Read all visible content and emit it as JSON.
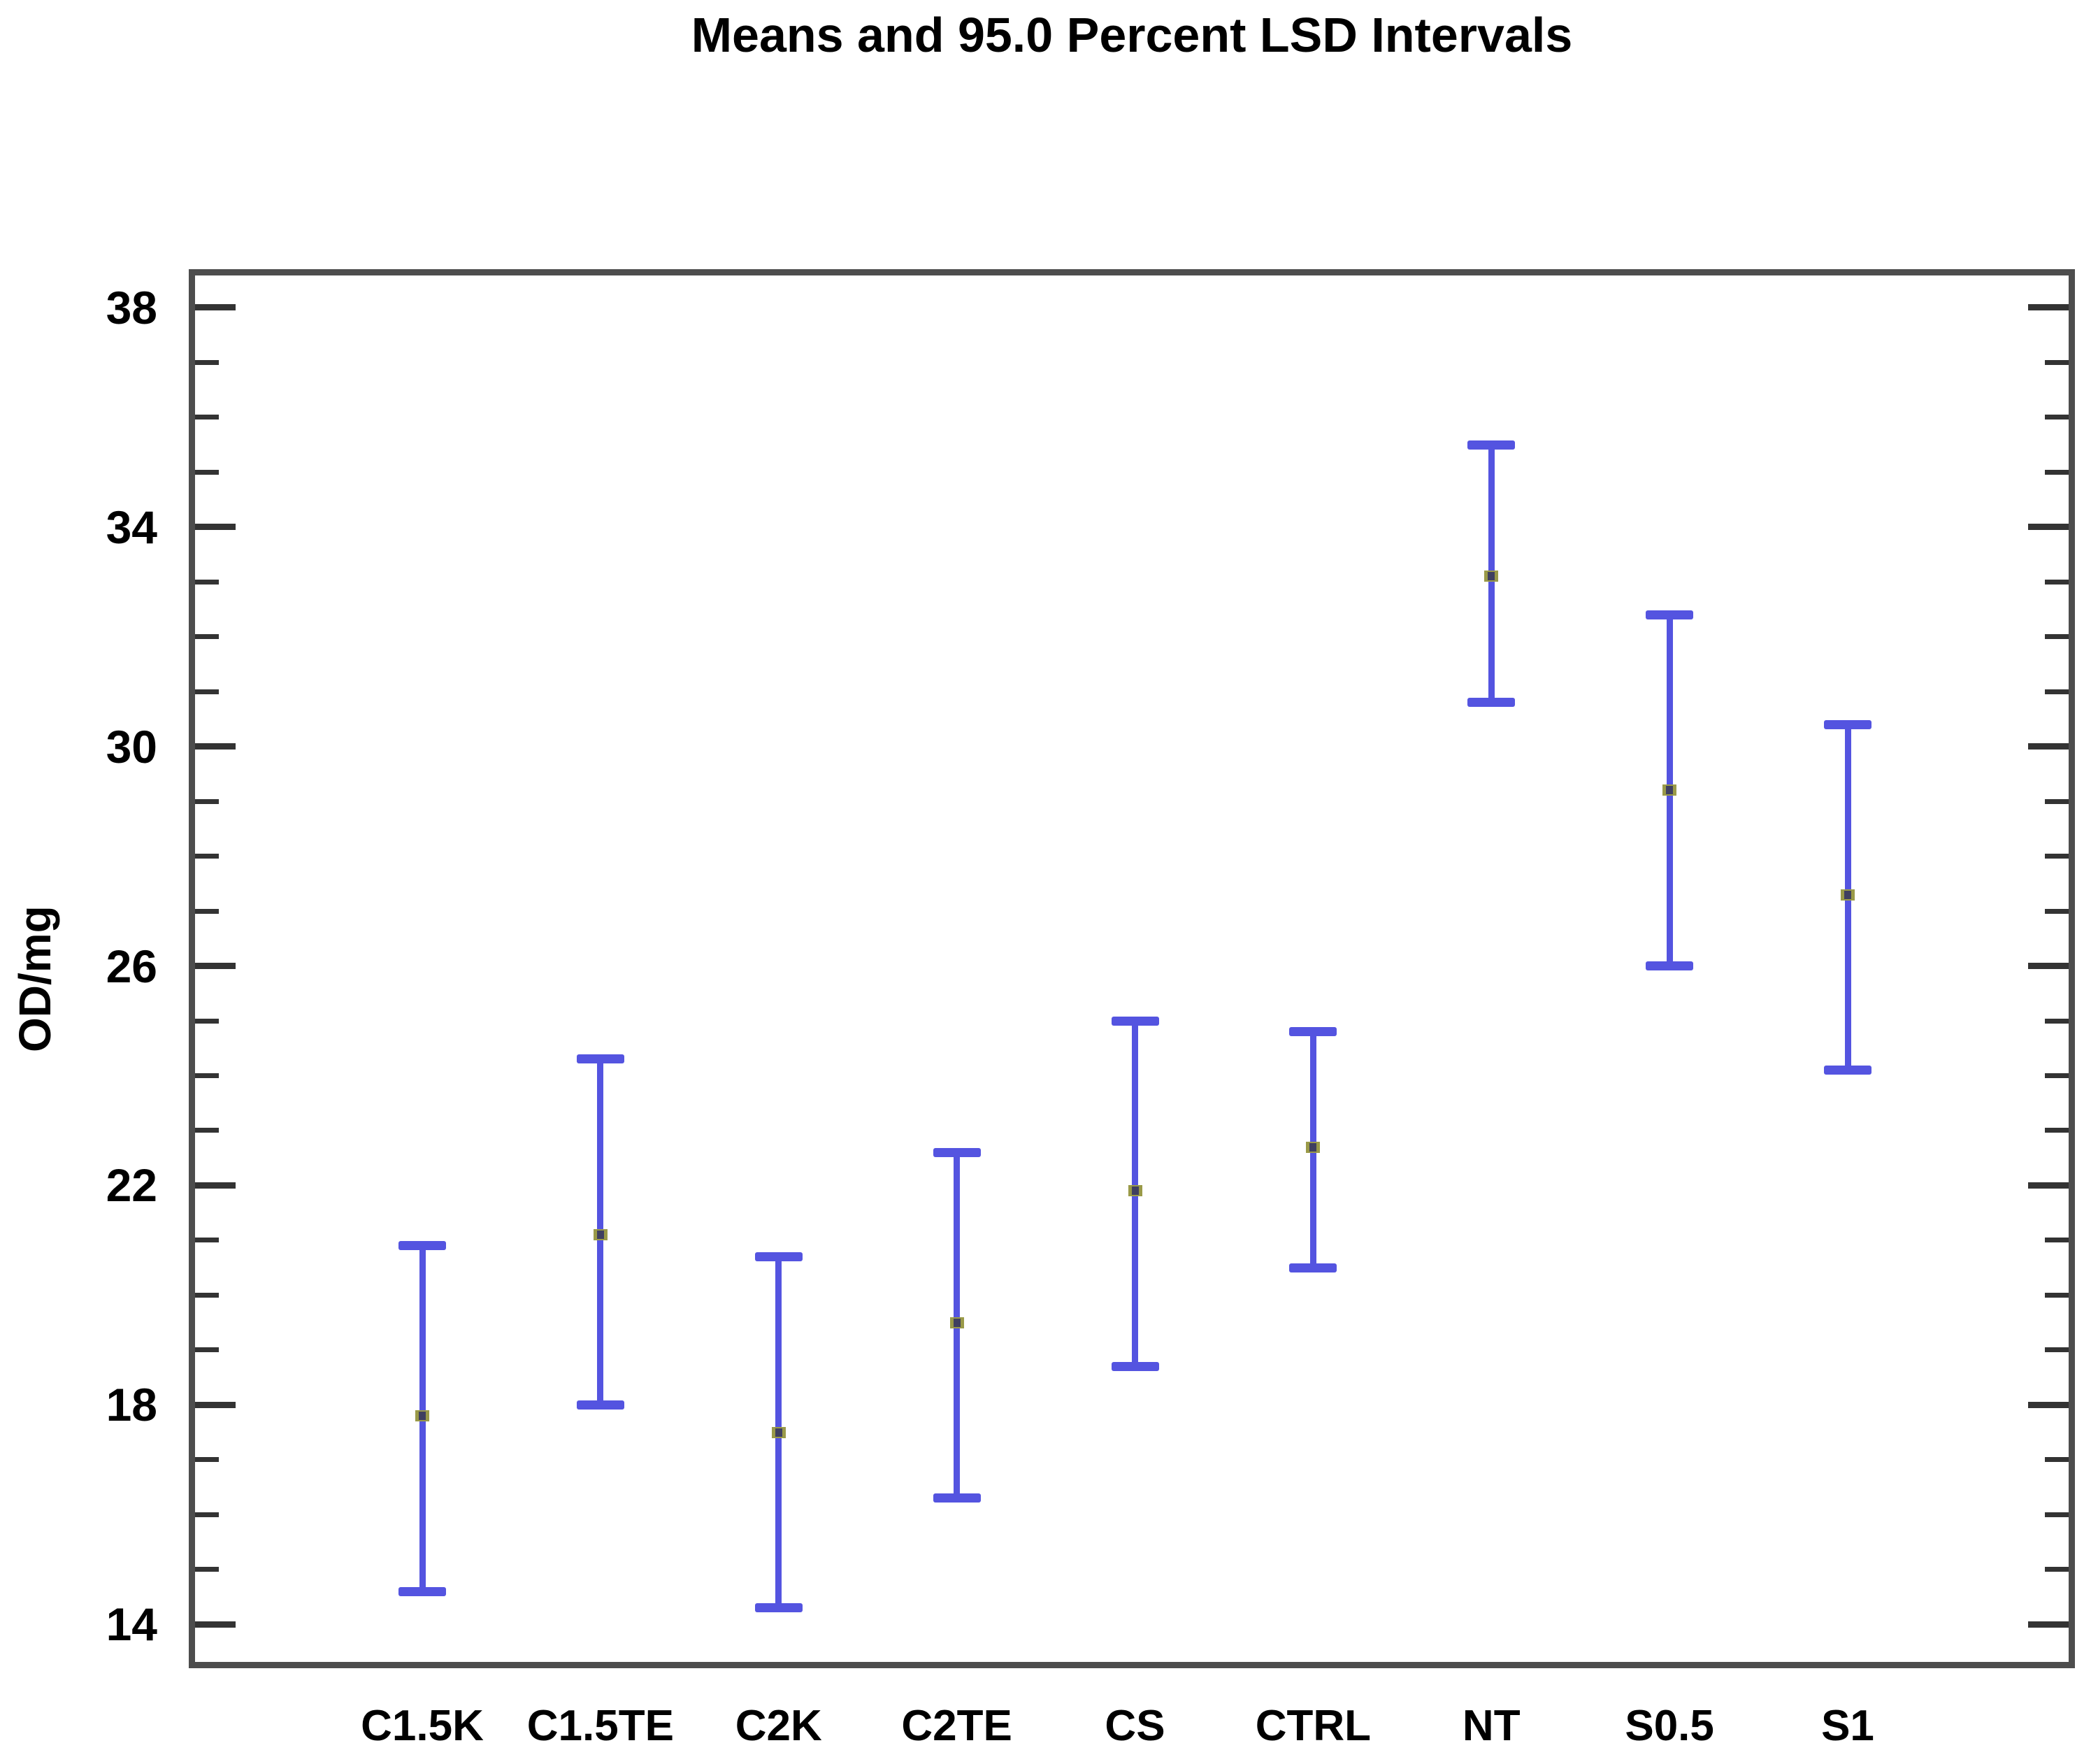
{
  "title": "Means and 95.0 Percent LSD Intervals",
  "y_axis": {
    "label": "OD/mg",
    "tick_labels": [
      "38",
      "34",
      "30",
      "26",
      "22",
      "18",
      "14"
    ]
  },
  "chart_data": {
    "type": "scatter",
    "subtype": "means-with-95-percent-LSD-interval-bars",
    "title": "Means and 95.0 Percent LSD Intervals",
    "xlabel": "",
    "ylabel": "OD/mg",
    "categories": [
      "C1.5K",
      "C1.5TE",
      "C2K",
      "C2TE",
      "CS",
      "CTRL",
      "NT",
      "S0.5",
      "S1"
    ],
    "series": [
      {
        "name": "mean",
        "values": [
          17.8,
          21.1,
          17.5,
          19.5,
          21.9,
          22.7,
          33.1,
          29.2,
          27.3
        ]
      },
      {
        "name": "lsd_interval_lower",
        "values": [
          14.6,
          18.0,
          14.3,
          16.3,
          18.7,
          20.5,
          30.8,
          26.0,
          24.1
        ]
      },
      {
        "name": "lsd_interval_upper",
        "values": [
          20.9,
          24.3,
          20.7,
          22.6,
          25.0,
          24.8,
          35.5,
          32.4,
          30.4
        ]
      }
    ],
    "ylim": [
      13.2,
      38.7
    ],
    "yticks_major": [
      14,
      18,
      22,
      26,
      30,
      34,
      38
    ],
    "yticks_minor_step": 1,
    "grid": false,
    "legend": false,
    "error_bar_style": "caps-and-line",
    "ticks_on_sides": [
      "left",
      "right"
    ]
  },
  "colors": {
    "interval": "#5454e0",
    "mean_point_outer": "#9a9a48",
    "mean_point_inner": "#3f3f60",
    "frame": "#4d4d4d",
    "tick": "#333333",
    "text": "#000000",
    "background": "#ffffff"
  }
}
